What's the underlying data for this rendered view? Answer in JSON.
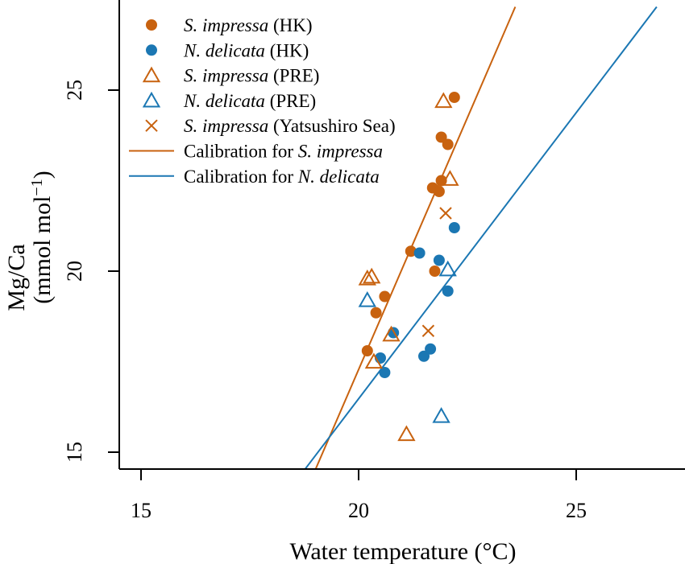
{
  "chart_data": {
    "type": "scatter",
    "xlabel": "Water temperature (°C)",
    "ylabel_line1": "Mg/Ca",
    "ylabel_line2": "(mmol mol",
    "ylabel_sup": "−1",
    "ylabel_close": ")",
    "xlim": [
      14,
      27.5
    ],
    "ylim": [
      14.5,
      27.3
    ],
    "xticks": [
      15,
      20,
      25
    ],
    "yticks": [
      15,
      20,
      25
    ],
    "grid": false,
    "legend_position": "top-left",
    "colors": {
      "si": "#C8620F",
      "nd": "#1B77B3"
    },
    "series": [
      {
        "name": "S. impressa (HK)",
        "legend_parts": [
          {
            "t": "S. impressa",
            "i": true
          },
          {
            "t": " (HK)",
            "i": false
          }
        ],
        "marker": "filled-circle",
        "color": "#C8620F",
        "points": [
          [
            22.2,
            24.8
          ],
          [
            21.9,
            23.7
          ],
          [
            22.05,
            23.5
          ],
          [
            21.9,
            22.5
          ],
          [
            21.7,
            22.3
          ],
          [
            21.85,
            22.2
          ],
          [
            21.2,
            20.55
          ],
          [
            21.75,
            20.0
          ],
          [
            20.6,
            19.3
          ],
          [
            20.4,
            18.85
          ],
          [
            20.2,
            17.8
          ]
        ]
      },
      {
        "name": "N. delicata (HK)",
        "legend_parts": [
          {
            "t": "N. delicata",
            "i": true
          },
          {
            "t": " (HK)",
            "i": false
          }
        ],
        "marker": "filled-circle",
        "color": "#1B77B3",
        "points": [
          [
            22.2,
            21.2
          ],
          [
            21.4,
            20.5
          ],
          [
            21.85,
            20.3
          ],
          [
            22.05,
            19.45
          ],
          [
            20.8,
            18.3
          ],
          [
            21.65,
            17.85
          ],
          [
            21.5,
            17.65
          ],
          [
            20.5,
            17.6
          ],
          [
            20.6,
            17.2
          ]
        ]
      },
      {
        "name": "S. impressa (PRE)",
        "legend_parts": [
          {
            "t": "S. impressa",
            "i": true
          },
          {
            "t": " (PRE)",
            "i": false
          }
        ],
        "marker": "open-triangle",
        "color": "#C8620F",
        "points": [
          [
            21.95,
            24.7
          ],
          [
            22.1,
            22.55
          ],
          [
            20.3,
            19.85
          ],
          [
            20.2,
            19.8
          ],
          [
            20.75,
            18.25
          ],
          [
            20.35,
            17.5
          ],
          [
            21.1,
            15.5
          ]
        ]
      },
      {
        "name": "N. delicata (PRE)",
        "legend_parts": [
          {
            "t": "N. delicata",
            "i": true
          },
          {
            "t": " (PRE)",
            "i": false
          }
        ],
        "marker": "open-triangle",
        "color": "#1B77B3",
        "points": [
          [
            22.05,
            20.05
          ],
          [
            20.2,
            19.2
          ],
          [
            21.9,
            16.0
          ]
        ]
      },
      {
        "name": "S. impressa (Yatsushiro Sea)",
        "legend_parts": [
          {
            "t": "S. impressa",
            "i": true
          },
          {
            "t": " (Yatsushiro Sea)",
            "i": false
          }
        ],
        "marker": "cross",
        "color": "#C8620F",
        "points": [
          [
            22.0,
            21.6
          ],
          [
            21.6,
            18.35
          ]
        ]
      },
      {
        "name": "Calibration for S. impressa",
        "legend_parts": [
          {
            "t": "Calibration for ",
            "i": false
          },
          {
            "t": "S. impressa",
            "i": true
          }
        ],
        "marker": "line",
        "color": "#C8620F",
        "line": [
          [
            19.0,
            14.5
          ],
          [
            23.6,
            27.3
          ]
        ]
      },
      {
        "name": "Calibration for N. delicata",
        "legend_parts": [
          {
            "t": "Calibration for ",
            "i": false
          },
          {
            "t": "N. delicata",
            "i": true
          }
        ],
        "marker": "line",
        "color": "#1B77B3",
        "line": [
          [
            18.75,
            14.5
          ],
          [
            26.85,
            27.3
          ]
        ]
      }
    ]
  }
}
